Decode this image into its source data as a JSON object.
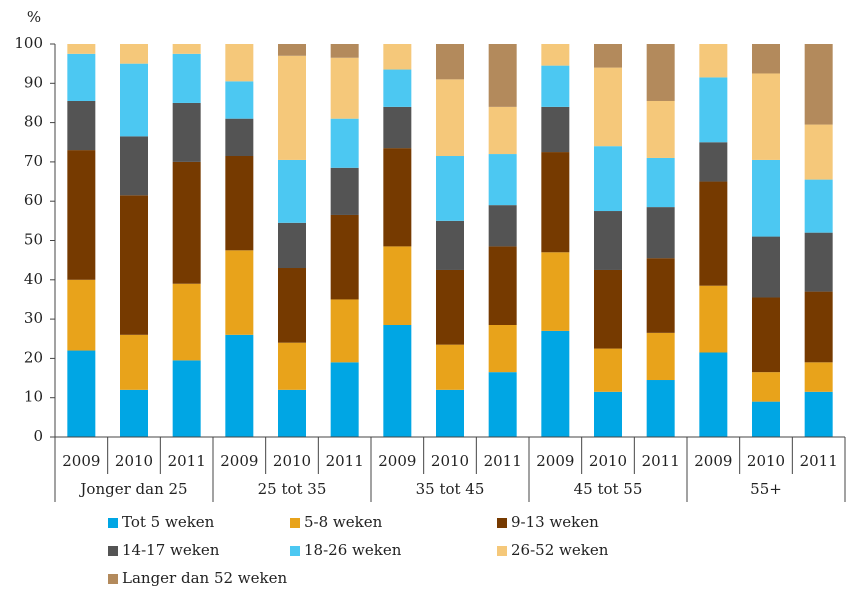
{
  "chart_data": {
    "type": "stacked_bar",
    "y_label": "%",
    "categories": [
      "2009",
      "2010",
      "2011",
      "2009",
      "2010",
      "2011",
      "2009",
      "2010",
      "2011",
      "2009",
      "2010",
      "2011",
      "2009",
      "2010",
      "2011"
    ],
    "groups": [
      "Jonger dan 25",
      "25 tot 35",
      "35 tot 45",
      "45 tot 55",
      "55+"
    ],
    "ylim": [
      0,
      100
    ],
    "yticks": [
      0,
      10,
      20,
      30,
      40,
      50,
      60,
      70,
      80,
      90,
      100
    ],
    "legend": "bottom",
    "series": [
      {
        "name": "Tot 5 weken",
        "color": "#00a6e4",
        "values": [
          22,
          12,
          19.5,
          26,
          12,
          19,
          28.5,
          12,
          16.5,
          27,
          11.5,
          14.5,
          21.5,
          9,
          11.5
        ]
      },
      {
        "name": "5-8 weken",
        "color": "#e8a31b",
        "values": [
          18,
          14,
          19.5,
          21.5,
          12,
          16,
          20,
          11.5,
          12,
          20,
          11,
          12,
          17,
          7.5,
          7.5
        ]
      },
      {
        "name": "9-13 weken",
        "color": "#763a00",
        "values": [
          33,
          35.5,
          31,
          24,
          19,
          21.5,
          25,
          19,
          20,
          25.5,
          20,
          19,
          26.5,
          19,
          18
        ]
      },
      {
        "name": "14-17 weken",
        "color": "#545454",
        "values": [
          12.5,
          15,
          15,
          9.5,
          11.5,
          12,
          10.5,
          12.5,
          10.5,
          11.5,
          15,
          13,
          10,
          15.5,
          15
        ]
      },
      {
        "name": "18-26 weken",
        "color": "#4cc8f2",
        "values": [
          12,
          18.5,
          12.5,
          9.5,
          16,
          12.5,
          9.5,
          16.5,
          13,
          10.5,
          16.5,
          12.5,
          16.5,
          19.5,
          13.5
        ]
      },
      {
        "name": "26-52 weken",
        "color": "#f5c87a",
        "values": [
          2.5,
          5,
          2.5,
          9.5,
          26.5,
          15.5,
          6.5,
          19.5,
          12,
          5.5,
          20,
          14.5,
          8.5,
          22,
          14
        ]
      },
      {
        "name": "Langer dan 52 weken",
        "color": "#b38a5c",
        "values": [
          0,
          0,
          0,
          0,
          3,
          3.5,
          0,
          9,
          16,
          0,
          6,
          14.5,
          0,
          7.5,
          20.5
        ]
      }
    ]
  }
}
